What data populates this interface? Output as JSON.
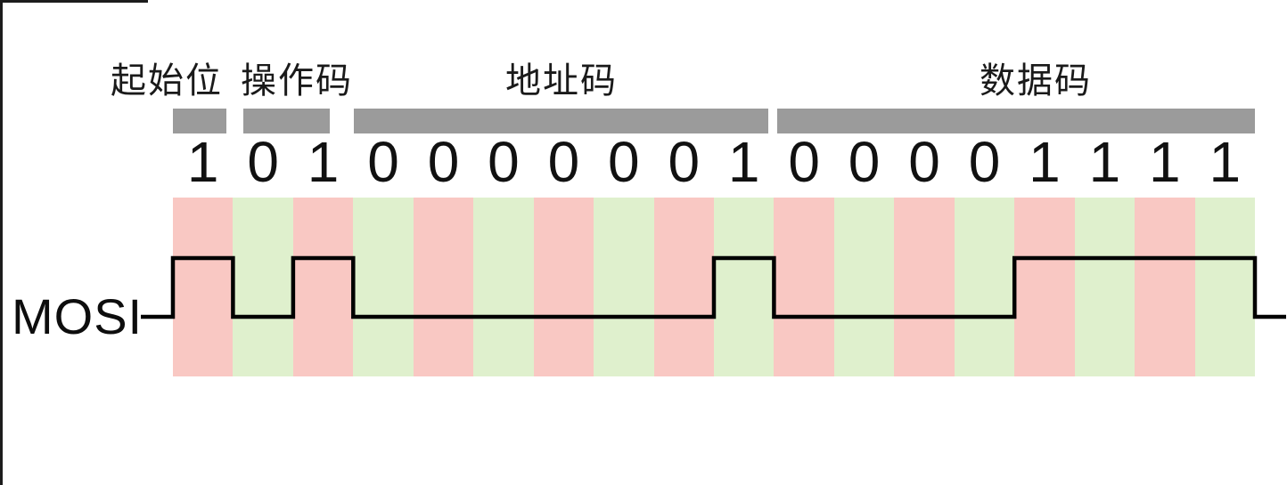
{
  "figure": {
    "signal": {
      "label": "MOSI",
      "bits": [
        1,
        0,
        1,
        0,
        0,
        0,
        0,
        0,
        0,
        1,
        0,
        0,
        0,
        0,
        1,
        1,
        1,
        1
      ]
    },
    "fields": [
      {
        "label": "起始位",
        "bit_count": 1,
        "bits": "1"
      },
      {
        "label": "操作码",
        "bit_count": 2,
        "bits": "01"
      },
      {
        "label": "地址码",
        "bit_count": 7,
        "bits": "0000001"
      },
      {
        "label": "数据码",
        "bit_count": 8,
        "bits": "00001111"
      }
    ],
    "colors": {
      "stripe_red": "#f9c8c3",
      "stripe_green": "#dff0cd",
      "field_bar_gray": "#9b9b9b",
      "waveform_line": "#000000",
      "text": "#1a1a1a"
    }
  }
}
